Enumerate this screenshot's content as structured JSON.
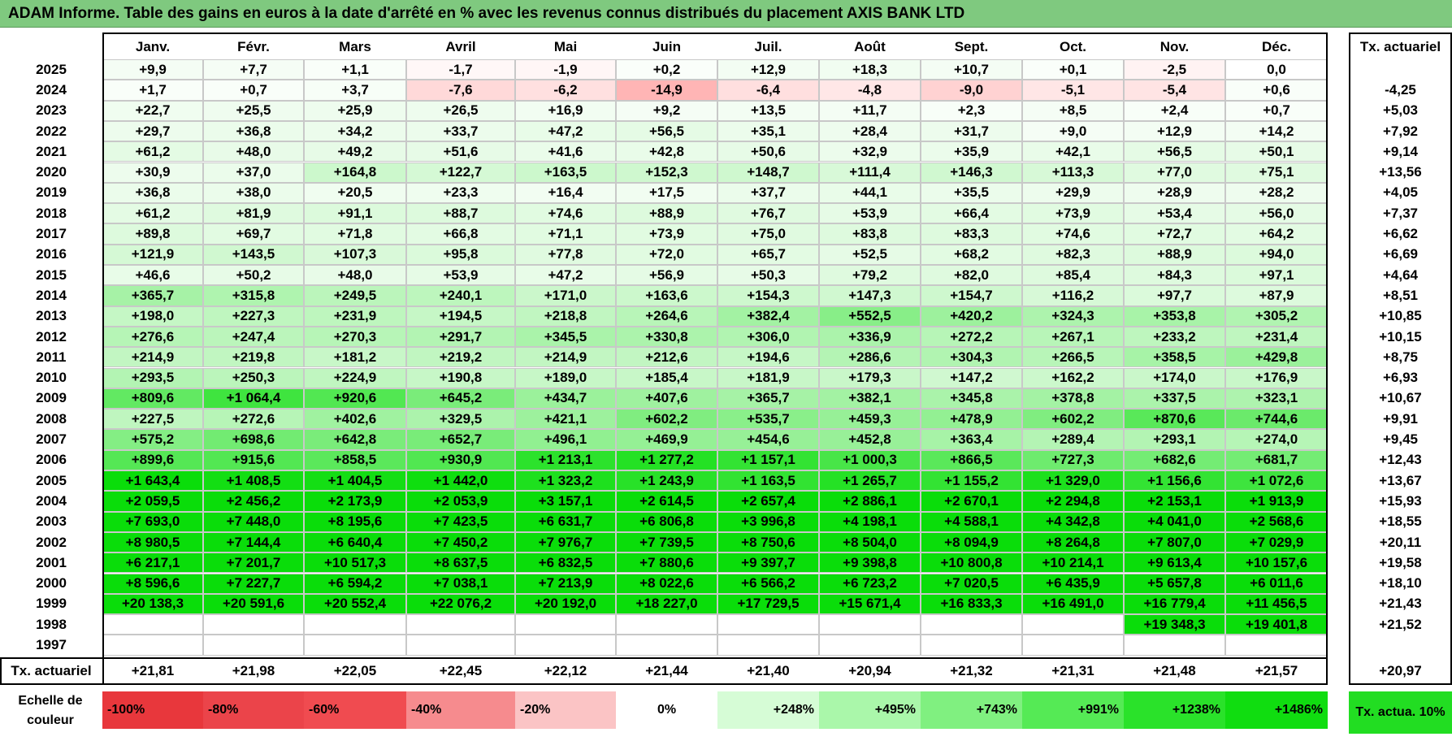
{
  "title": "ADAM Informe. Table des gains en euros à la date d'arrêté en % avec les revenus connus distribués du placement AXIS BANK LTD",
  "chart_data": {
    "type": "table",
    "months": [
      "Janv.",
      "Févr.",
      "Mars",
      "Avril",
      "Mai",
      "Juin",
      "Juil.",
      "Août",
      "Sept.",
      "Oct.",
      "Nov.",
      "Déc."
    ],
    "rate_header": "Tx. actuariel",
    "rows": [
      {
        "year": "2025",
        "values": [
          "+9,9",
          "+7,7",
          "+1,1",
          "-1,7",
          "-1,9",
          "+0,2",
          "+12,9",
          "+18,3",
          "+10,7",
          "+0,1",
          "-2,5",
          "0,0"
        ],
        "rate": ""
      },
      {
        "year": "2024",
        "values": [
          "+1,7",
          "+0,7",
          "+3,7",
          "-7,6",
          "-6,2",
          "-14,9",
          "-6,4",
          "-4,8",
          "-9,0",
          "-5,1",
          "-5,4",
          "+0,6"
        ],
        "rate": "-4,25"
      },
      {
        "year": "2023",
        "values": [
          "+22,7",
          "+25,5",
          "+25,9",
          "+26,5",
          "+16,9",
          "+9,2",
          "+13,5",
          "+11,7",
          "+2,3",
          "+8,5",
          "+2,4",
          "+0,7"
        ],
        "rate": "+5,03"
      },
      {
        "year": "2022",
        "values": [
          "+29,7",
          "+36,8",
          "+34,2",
          "+33,7",
          "+47,2",
          "+56,5",
          "+35,1",
          "+28,4",
          "+31,7",
          "+9,0",
          "+12,9",
          "+14,2"
        ],
        "rate": "+7,92"
      },
      {
        "year": "2021",
        "values": [
          "+61,2",
          "+48,0",
          "+49,2",
          "+51,6",
          "+41,6",
          "+42,8",
          "+50,6",
          "+32,9",
          "+35,9",
          "+42,1",
          "+56,5",
          "+50,1"
        ],
        "rate": "+9,14"
      },
      {
        "year": "2020",
        "values": [
          "+30,9",
          "+37,0",
          "+164,8",
          "+122,7",
          "+163,5",
          "+152,3",
          "+148,7",
          "+111,4",
          "+146,3",
          "+113,3",
          "+77,0",
          "+75,1"
        ],
        "rate": "+13,56"
      },
      {
        "year": "2019",
        "values": [
          "+36,8",
          "+38,0",
          "+20,5",
          "+23,3",
          "+16,4",
          "+17,5",
          "+37,7",
          "+44,1",
          "+35,5",
          "+29,9",
          "+28,9",
          "+28,2"
        ],
        "rate": "+4,05"
      },
      {
        "year": "2018",
        "values": [
          "+61,2",
          "+81,9",
          "+91,1",
          "+88,7",
          "+74,6",
          "+88,9",
          "+76,7",
          "+53,9",
          "+66,4",
          "+73,9",
          "+53,4",
          "+56,0"
        ],
        "rate": "+7,37"
      },
      {
        "year": "2017",
        "values": [
          "+89,8",
          "+69,7",
          "+71,8",
          "+66,8",
          "+71,1",
          "+73,9",
          "+75,0",
          "+83,8",
          "+83,3",
          "+74,6",
          "+72,7",
          "+64,2"
        ],
        "rate": "+6,62"
      },
      {
        "year": "2016",
        "values": [
          "+121,9",
          "+143,5",
          "+107,3",
          "+95,8",
          "+77,8",
          "+72,0",
          "+65,7",
          "+52,5",
          "+68,2",
          "+82,3",
          "+88,9",
          "+94,0"
        ],
        "rate": "+6,69"
      },
      {
        "year": "2015",
        "values": [
          "+46,6",
          "+50,2",
          "+48,0",
          "+53,9",
          "+47,2",
          "+56,9",
          "+50,3",
          "+79,2",
          "+82,0",
          "+85,4",
          "+84,3",
          "+97,1"
        ],
        "rate": "+4,64"
      },
      {
        "year": "2014",
        "values": [
          "+365,7",
          "+315,8",
          "+249,5",
          "+240,1",
          "+171,0",
          "+163,6",
          "+154,3",
          "+147,3",
          "+154,7",
          "+116,2",
          "+97,7",
          "+87,9"
        ],
        "rate": "+8,51"
      },
      {
        "year": "2013",
        "values": [
          "+198,0",
          "+227,3",
          "+231,9",
          "+194,5",
          "+218,8",
          "+264,6",
          "+382,4",
          "+552,5",
          "+420,2",
          "+324,3",
          "+353,8",
          "+305,2"
        ],
        "rate": "+10,85"
      },
      {
        "year": "2012",
        "values": [
          "+276,6",
          "+247,4",
          "+270,3",
          "+291,7",
          "+345,5",
          "+330,8",
          "+306,0",
          "+336,9",
          "+272,2",
          "+267,1",
          "+233,2",
          "+231,4"
        ],
        "rate": "+10,15"
      },
      {
        "year": "2011",
        "values": [
          "+214,9",
          "+219,8",
          "+181,2",
          "+219,2",
          "+214,9",
          "+212,6",
          "+194,6",
          "+286,6",
          "+304,3",
          "+266,5",
          "+358,5",
          "+429,8"
        ],
        "rate": "+8,75"
      },
      {
        "year": "2010",
        "values": [
          "+293,5",
          "+250,3",
          "+224,9",
          "+190,8",
          "+189,0",
          "+185,4",
          "+181,9",
          "+179,3",
          "+147,2",
          "+162,2",
          "+174,0",
          "+176,9"
        ],
        "rate": "+6,93"
      },
      {
        "year": "2009",
        "values": [
          "+809,6",
          "+1 064,4",
          "+920,6",
          "+645,2",
          "+434,7",
          "+407,6",
          "+365,7",
          "+382,1",
          "+345,8",
          "+378,8",
          "+337,5",
          "+323,1"
        ],
        "rate": "+10,67"
      },
      {
        "year": "2008",
        "values": [
          "+227,5",
          "+272,6",
          "+402,6",
          "+329,5",
          "+421,1",
          "+602,2",
          "+535,7",
          "+459,3",
          "+478,9",
          "+602,2",
          "+870,6",
          "+744,6"
        ],
        "rate": "+9,91"
      },
      {
        "year": "2007",
        "values": [
          "+575,2",
          "+698,6",
          "+642,8",
          "+652,7",
          "+496,1",
          "+469,9",
          "+454,6",
          "+452,8",
          "+363,4",
          "+289,4",
          "+293,1",
          "+274,0"
        ],
        "rate": "+9,45"
      },
      {
        "year": "2006",
        "values": [
          "+899,6",
          "+915,6",
          "+858,5",
          "+930,9",
          "+1 213,1",
          "+1 277,2",
          "+1 157,1",
          "+1 000,3",
          "+866,5",
          "+727,3",
          "+682,6",
          "+681,7"
        ],
        "rate": "+12,43"
      },
      {
        "year": "2005",
        "values": [
          "+1 643,4",
          "+1 408,5",
          "+1 404,5",
          "+1 442,0",
          "+1 323,2",
          "+1 243,9",
          "+1 163,5",
          "+1 265,7",
          "+1 155,2",
          "+1 329,0",
          "+1 156,6",
          "+1 072,6"
        ],
        "rate": "+13,67"
      },
      {
        "year": "2004",
        "values": [
          "+2 059,5",
          "+2 456,2",
          "+2 173,9",
          "+2 053,9",
          "+3 157,1",
          "+2 614,5",
          "+2 657,4",
          "+2 886,1",
          "+2 670,1",
          "+2 294,8",
          "+2 153,1",
          "+1 913,9"
        ],
        "rate": "+15,93"
      },
      {
        "year": "2003",
        "values": [
          "+7 693,0",
          "+7 448,0",
          "+8 195,6",
          "+7 423,5",
          "+6 631,7",
          "+6 806,8",
          "+3 996,8",
          "+4 198,1",
          "+4 588,1",
          "+4 342,8",
          "+4 041,0",
          "+2 568,6"
        ],
        "rate": "+18,55"
      },
      {
        "year": "2002",
        "values": [
          "+8 980,5",
          "+7 144,4",
          "+6 640,4",
          "+7 450,2",
          "+7 976,7",
          "+7 739,5",
          "+8 750,6",
          "+8 504,0",
          "+8 094,9",
          "+8 264,8",
          "+7 807,0",
          "+7 029,9"
        ],
        "rate": "+20,11"
      },
      {
        "year": "2001",
        "values": [
          "+6 217,1",
          "+7 201,7",
          "+10 517,3",
          "+8 637,5",
          "+6 832,5",
          "+7 880,6",
          "+9 397,7",
          "+9 398,8",
          "+10 800,8",
          "+10 214,1",
          "+9 613,4",
          "+10 157,6"
        ],
        "rate": "+19,58"
      },
      {
        "year": "2000",
        "values": [
          "+8 596,6",
          "+7 227,7",
          "+6 594,2",
          "+7 038,1",
          "+7 213,9",
          "+8 022,6",
          "+6 566,2",
          "+6 723,2",
          "+7 020,5",
          "+6 435,9",
          "+5 657,8",
          "+6 011,6"
        ],
        "rate": "+18,10"
      },
      {
        "year": "1999",
        "values": [
          "+20 138,3",
          "+20 591,6",
          "+20 552,4",
          "+22 076,2",
          "+20 192,0",
          "+18 227,0",
          "+17 729,5",
          "+15 671,4",
          "+16 833,3",
          "+16 491,0",
          "+16 779,4",
          "+11 456,5"
        ],
        "rate": "+21,43"
      },
      {
        "year": "1998",
        "values": [
          "",
          "",
          "",
          "",
          "",
          "",
          "",
          "",
          "",
          "",
          "+19 348,3",
          "+19 401,8"
        ],
        "rate": "+21,52"
      },
      {
        "year": "1997",
        "values": [
          "",
          "",
          "",
          "",
          "",
          "",
          "",
          "",
          "",
          "",
          "",
          ""
        ],
        "rate": ""
      }
    ],
    "footer": {
      "label": "Tx. actuariel",
      "values": [
        "+21,81",
        "+21,98",
        "+22,05",
        "+22,45",
        "+22,12",
        "+21,44",
        "+21,40",
        "+20,94",
        "+21,32",
        "+21,31",
        "+21,48",
        "+21,57"
      ],
      "rate": "+20,97"
    },
    "legend": {
      "label": "Echelle de couleur",
      "items": [
        {
          "text": "-100%",
          "color": "#e8373c"
        },
        {
          "text": "-80%",
          "color": "#eb444a"
        },
        {
          "text": "-60%",
          "color": "#f04b50"
        },
        {
          "text": "-40%",
          "color": "#f68b8e"
        },
        {
          "text": "-20%",
          "color": "#fbc4c5"
        },
        {
          "text": "0%",
          "color": "#ffffff"
        },
        {
          "text": "+248%",
          "color": "#d6fcd6"
        },
        {
          "text": "+495%",
          "color": "#aaf7aa"
        },
        {
          "text": "+743%",
          "color": "#80f080"
        },
        {
          "text": "+991%",
          "color": "#55ea55"
        },
        {
          "text": "+1238%",
          "color": "#2ae22a"
        },
        {
          "text": "+1486%",
          "color": "#10dd10"
        }
      ],
      "rate_item": {
        "text": "Tx. actua. 10%",
        "color": "#22dd22"
      }
    }
  }
}
